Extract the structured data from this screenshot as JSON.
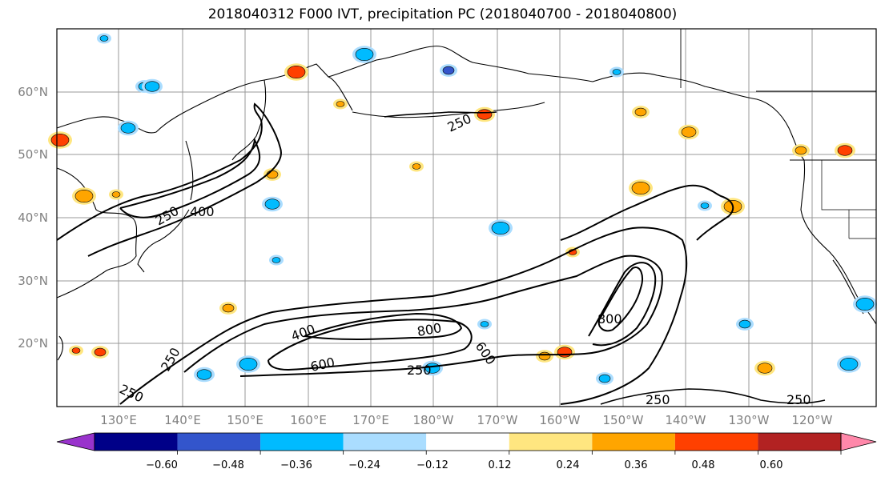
{
  "title": "2018040312 F000 IVT, precipitation PC (2018040700 - 2018040800)",
  "lat_labels": [
    "60°N",
    "50°N",
    "40°N",
    "30°N",
    "20°N"
  ],
  "lon_labels": [
    "130°E",
    "140°E",
    "150°E",
    "160°E",
    "170°E",
    "180°W",
    "170°W",
    "160°W",
    "150°W",
    "140°W",
    "130°W",
    "120°W"
  ],
  "colorbar": {
    "colors": [
      "#9933cc",
      "#000088",
      "#3355cc",
      "#00bbff",
      "#aaddff",
      "#ffffff",
      "#ffe680",
      "#ffa500",
      "#ff4000",
      "#b22222",
      "#ff88aa"
    ],
    "labels": [
      "−0.60",
      "−0.48",
      "−0.36",
      "−0.24",
      "−0.12",
      "0.12",
      "0.24",
      "0.36",
      "0.48",
      "0.60"
    ]
  },
  "contour_labels": [
    "250",
    "400",
    "400",
    "600",
    "800",
    "600",
    "250",
    "800",
    "250",
    "250",
    "250",
    "250",
    "250"
  ],
  "colors": {
    "land_line": "#000000",
    "grid": "#999999",
    "ivt_contour": "#000000"
  }
}
